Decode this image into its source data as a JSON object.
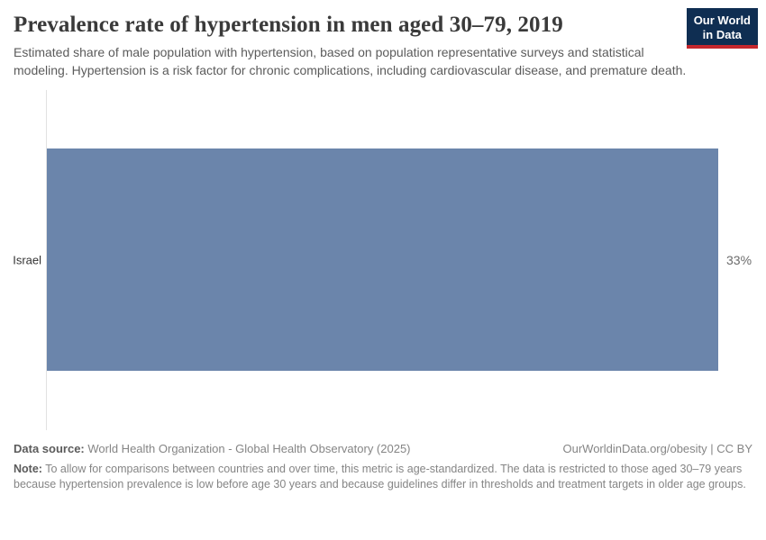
{
  "header": {
    "title": "Prevalence rate of hypertension in men aged 30–79, 2019",
    "subtitle": "Estimated share of male population with hypertension, based on population representative surveys and statistical modeling. Hypertension is a risk factor for chronic complications, including cardiovascular disease, and premature death.",
    "logo": {
      "line1": "Our World",
      "line2": "in Data",
      "bg_color": "#0f2e52",
      "accent_color": "#c5272d",
      "text_color": "#ffffff"
    }
  },
  "chart_data": {
    "type": "bar",
    "orientation": "horizontal",
    "title": "Prevalence rate of hypertension in men aged 30–79, 2019",
    "categories": [
      "Israel"
    ],
    "values": [
      33
    ],
    "value_labels": [
      "33%"
    ],
    "unit": "%",
    "axis_max": 33,
    "bar_color": "#6b85ab",
    "grid": false,
    "axis_ticks_visible": false,
    "legend": "none"
  },
  "footer": {
    "source_label": "Data source:",
    "source_text": " World Health Organization - Global Health Observatory (2025)",
    "attribution": "OurWorldinData.org/obesity | CC BY",
    "note_label": "Note:",
    "note_text": " To allow for comparisons between countries and over time, this metric is age-standardized. The data is restricted to those aged 30–79 years because hypertension prevalence is low before age 30 years and because guidelines differ in thresholds and treatment targets in older age groups."
  }
}
